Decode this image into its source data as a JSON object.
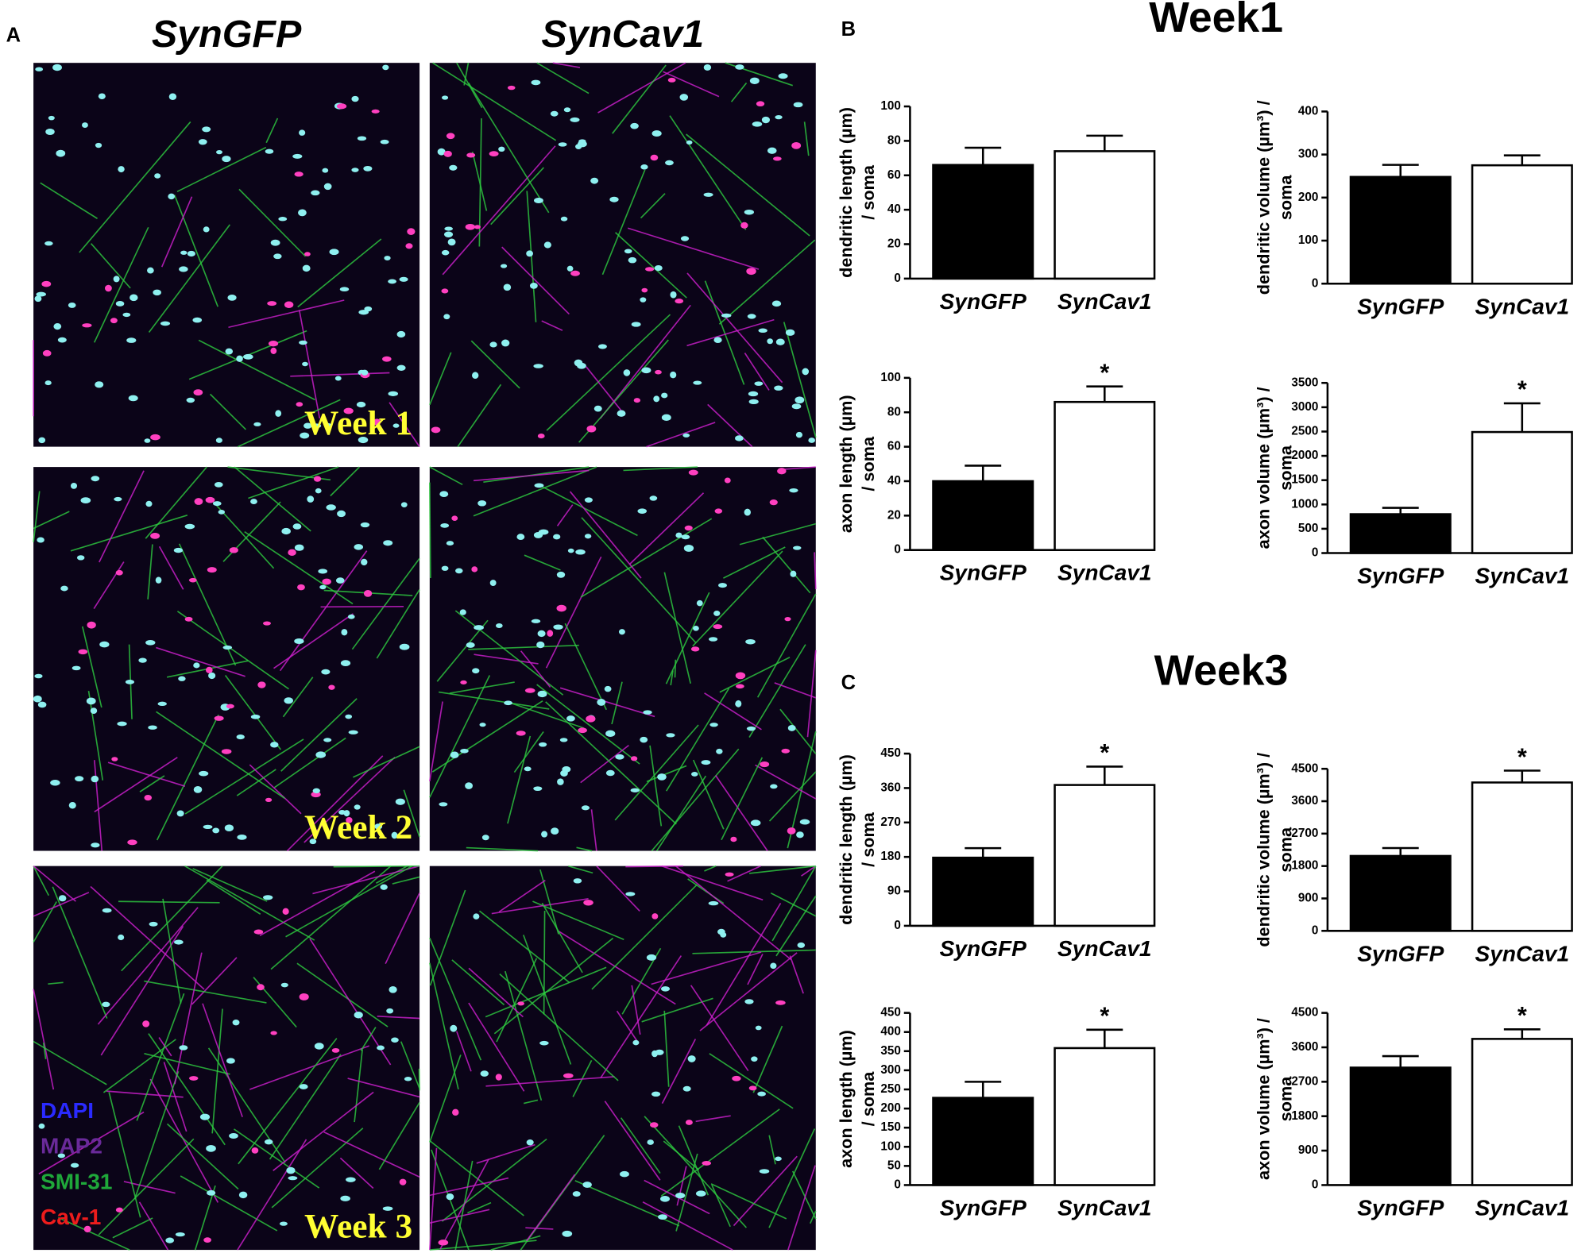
{
  "panel_a": {
    "label": "A",
    "columns": [
      "SynGFP",
      "SynCav1"
    ],
    "rows": [
      "Week 1",
      "Week 2",
      "Week 3"
    ],
    "stains": [
      {
        "name": "DAPI",
        "color": "#2a2aff"
      },
      {
        "name": "MAP2",
        "color": "#6a2a9a"
      },
      {
        "name": "SMI-31",
        "color": "#1fa83a"
      },
      {
        "name": "Cav-1",
        "color": "#ee1c1c"
      }
    ]
  },
  "sections": [
    {
      "label": "B",
      "title": "Week1"
    },
    {
      "label": "C",
      "title": "Week3"
    }
  ],
  "chart_data": [
    {
      "type": "bar",
      "y_label": [
        "dendritic length (µm)",
        "/ soma"
      ],
      "categories": [
        "SynGFP",
        "SynCav1"
      ],
      "values": [
        66,
        74
      ],
      "errors": [
        10,
        9
      ],
      "colors": [
        "#000000",
        "#ffffff"
      ],
      "significance": [
        null,
        null
      ],
      "ylim": [
        0,
        100
      ],
      "yticks": [
        0,
        20,
        40,
        60,
        80,
        100
      ]
    },
    {
      "type": "bar",
      "y_label": [
        "dendritic volume (µm³) /",
        "soma"
      ],
      "categories": [
        "SynGFP",
        "SynCav1"
      ],
      "values": [
        248,
        275
      ],
      "errors": [
        28,
        23
      ],
      "colors": [
        "#000000",
        "#ffffff"
      ],
      "significance": [
        null,
        null
      ],
      "ylim": [
        0,
        400
      ],
      "yticks": [
        0,
        100,
        200,
        300,
        400
      ]
    },
    {
      "type": "bar",
      "y_label": [
        "axon length (µm)",
        "/ soma"
      ],
      "categories": [
        "SynGFP",
        "SynCav1"
      ],
      "values": [
        40,
        86
      ],
      "errors": [
        9,
        9
      ],
      "colors": [
        "#000000",
        "#ffffff"
      ],
      "significance": [
        null,
        "*"
      ],
      "ylim": [
        0,
        100
      ],
      "yticks": [
        0,
        20,
        40,
        60,
        80,
        100
      ]
    },
    {
      "type": "bar",
      "y_label": [
        "axon volume (µm³) /",
        "soma"
      ],
      "categories": [
        "SynGFP",
        "SynCav1"
      ],
      "values": [
        800,
        2490
      ],
      "errors": [
        130,
        590
      ],
      "colors": [
        "#000000",
        "#ffffff"
      ],
      "significance": [
        null,
        "*"
      ],
      "ylim": [
        0,
        3500
      ],
      "yticks": [
        0,
        500,
        1000,
        1500,
        2000,
        2500,
        3000,
        3500
      ]
    },
    {
      "type": "bar",
      "y_label": [
        "dendritic length (µm)",
        "/ soma"
      ],
      "categories": [
        "SynGFP",
        "SynCav1"
      ],
      "values": [
        178,
        368
      ],
      "errors": [
        25,
        48
      ],
      "colors": [
        "#000000",
        "#ffffff"
      ],
      "significance": [
        null,
        "*"
      ],
      "ylim": [
        0,
        450
      ],
      "yticks": [
        0,
        90,
        180,
        270,
        360,
        450
      ]
    },
    {
      "type": "bar",
      "y_label": [
        "dendritic volume (µm³) /",
        "soma"
      ],
      "categories": [
        "SynGFP",
        "SynCav1"
      ],
      "values": [
        2080,
        4120
      ],
      "errors": [
        220,
        330
      ],
      "colors": [
        "#000000",
        "#ffffff"
      ],
      "significance": [
        null,
        "*"
      ],
      "ylim": [
        0,
        4500
      ],
      "yticks": [
        0,
        900,
        1800,
        2700,
        3600,
        4500
      ]
    },
    {
      "type": "bar",
      "y_label": [
        "axon length (µm)",
        "/ soma"
      ],
      "categories": [
        "SynGFP",
        "SynCav1"
      ],
      "values": [
        228,
        358
      ],
      "errors": [
        42,
        48
      ],
      "colors": [
        "#000000",
        "#ffffff"
      ],
      "significance": [
        null,
        "*"
      ],
      "ylim": [
        0,
        450
      ],
      "yticks": [
        0,
        50,
        100,
        150,
        200,
        250,
        300,
        350,
        400,
        450
      ]
    },
    {
      "type": "bar",
      "y_label": [
        "axon volume (µm³) /",
        "soma"
      ],
      "categories": [
        "SynGFP",
        "SynCav1"
      ],
      "values": [
        3070,
        3820
      ],
      "errors": [
        300,
        250
      ],
      "colors": [
        "#000000",
        "#ffffff"
      ],
      "significance": [
        null,
        "*"
      ],
      "ylim": [
        0,
        4500
      ],
      "yticks": [
        0,
        900,
        1800,
        2700,
        3600,
        4500
      ]
    }
  ]
}
